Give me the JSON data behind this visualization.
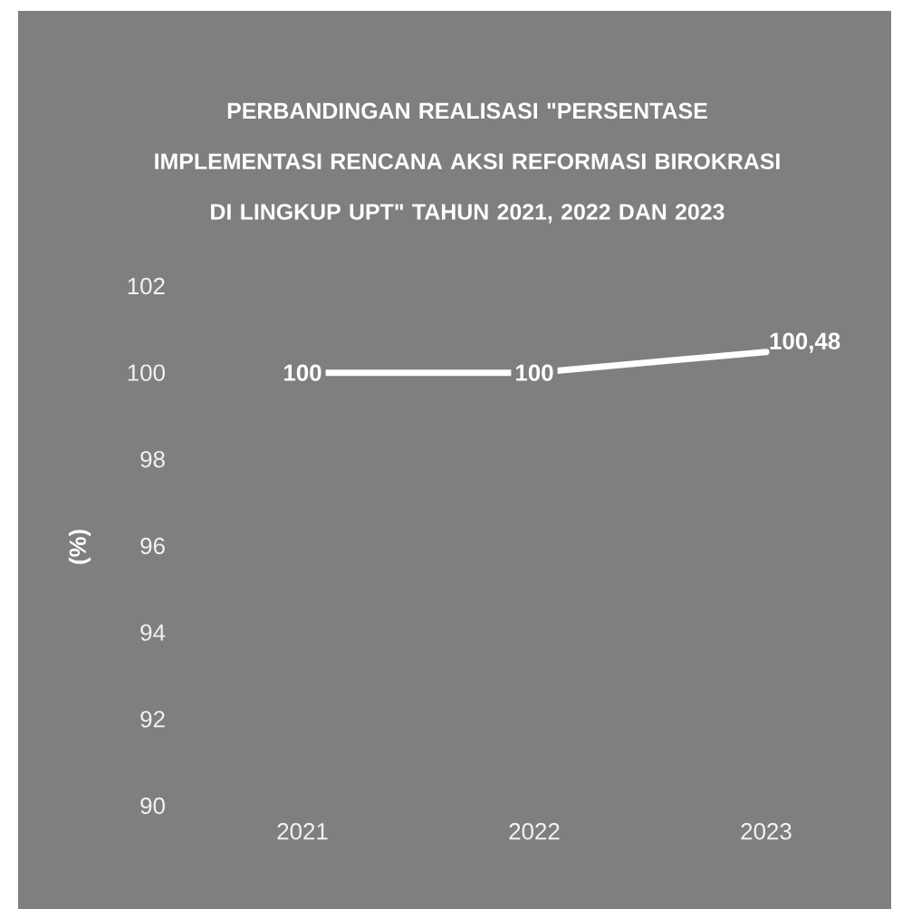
{
  "chart_data": {
    "type": "line",
    "title": "PERBANDINGAN REALISASI \"PERSENTASE IMPLEMENTASI RENCANA AKSI REFORMASI BIROKRASI DI LINGKUP UPT\" TAHUN 2021, 2022 DAN 2023",
    "ylabel": "(%)",
    "categories": [
      "2021",
      "2022",
      "2023"
    ],
    "series": [
      {
        "color": "#ffffff",
        "values": [
          100,
          100,
          100.48
        ],
        "value_labels": [
          "100",
          "100",
          "100,48"
        ]
      }
    ],
    "ylim": [
      90,
      102
    ],
    "yticks": [
      90,
      92,
      94,
      96,
      98,
      100,
      102
    ],
    "line_style": "solid"
  }
}
